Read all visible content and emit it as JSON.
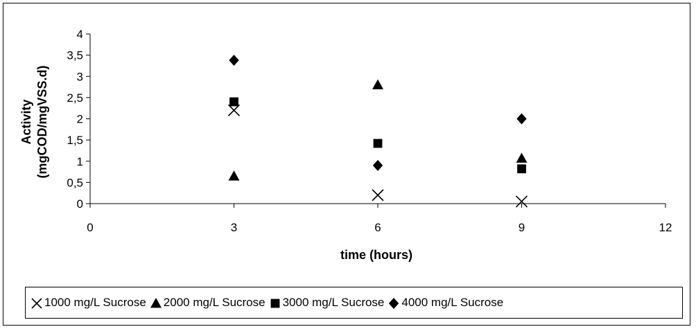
{
  "chart_data": {
    "type": "scatter",
    "title": "",
    "xlabel": "time (hours)",
    "ylabel": "Activity\n(mgCOD/mgVSS.d)",
    "xlim": [
      0,
      12
    ],
    "ylim": [
      0,
      4
    ],
    "x_ticks": [
      0,
      3,
      6,
      9,
      12
    ],
    "x_tick_labels": [
      "0",
      "3",
      "6",
      "9",
      "12"
    ],
    "y_ticks": [
      0,
      0.5,
      1,
      1.5,
      2,
      2.5,
      3,
      3.5,
      4
    ],
    "y_tick_labels": [
      "0",
      "0,5",
      "1",
      "1,5",
      "2",
      "2,5",
      "3",
      "3,5",
      "4"
    ],
    "grid": false,
    "legend_position": "bottom",
    "series": [
      {
        "name": "1000 mg/L Sucrose",
        "marker": "x",
        "color": "#000000",
        "points": [
          [
            3,
            2.2
          ],
          [
            6,
            0.2
          ],
          [
            9,
            0.05
          ]
        ]
      },
      {
        "name": "2000 mg/L Sucrose",
        "marker": "triangle",
        "color": "#000000",
        "points": [
          [
            3,
            0.65
          ],
          [
            6,
            2.8
          ],
          [
            9,
            1.07
          ]
        ]
      },
      {
        "name": "3000 mg/L Sucrose",
        "marker": "square",
        "color": "#000000",
        "points": [
          [
            3,
            2.4
          ],
          [
            6,
            1.42
          ],
          [
            9,
            0.82
          ]
        ]
      },
      {
        "name": "4000 mg/L Sucrose",
        "marker": "diamond",
        "color": "#000000",
        "points": [
          [
            3,
            3.38
          ],
          [
            6,
            0.9
          ],
          [
            9,
            2.0
          ]
        ]
      }
    ]
  }
}
